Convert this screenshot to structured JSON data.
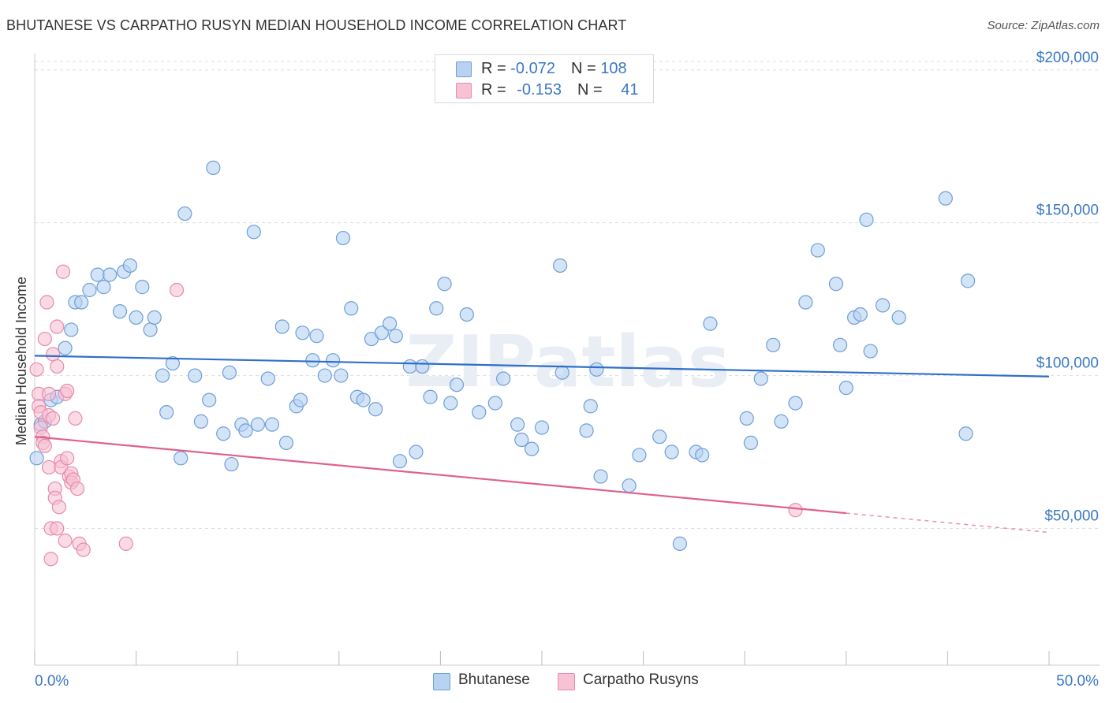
{
  "title": "BHUTANESE VS CARPATHO RUSYN MEDIAN HOUSEHOLD INCOME CORRELATION CHART",
  "source": "Source: ZipAtlas.com",
  "watermark": "ZIPatlas",
  "legend_top": [
    {
      "r_label": "R = ",
      "r_value": "-0.072",
      "n_label": "N = ",
      "n_value": "108"
    },
    {
      "r_label": "R = ",
      "r_value": "-0.153",
      "n_label": "N = ",
      "n_value": "41"
    }
  ],
  "legend_bottom": [
    {
      "label": "Bhutanese"
    },
    {
      "label": "Carpatho Rusyns"
    }
  ],
  "colors": {
    "blue_fill": "#b8d2f2",
    "blue_stroke": "#6e9fd8",
    "blue_line": "#2f6fca",
    "pink_fill": "#f7c2d4",
    "pink_stroke": "#e88bab",
    "pink_line": "#e0608e",
    "axis_text": "#3b78c4",
    "grid": "#dddddd"
  },
  "chart_data": {
    "type": "scatter",
    "title": "BHUTANESE VS CARPATHO RUSYN MEDIAN HOUSEHOLD INCOME CORRELATION CHART",
    "xlabel": "",
    "ylabel": "Median Household Income",
    "xlim": [
      0,
      50
    ],
    "ylim": [
      5000,
      210000
    ],
    "x_tick_labels": [
      "0.0%",
      "50.0%"
    ],
    "y_ticks": [
      50000,
      100000,
      150000,
      200000
    ],
    "y_tick_labels": [
      "$50,000",
      "$100,000",
      "$150,000",
      "$200,000"
    ],
    "series": [
      {
        "name": "Bhutanese",
        "r": -0.072,
        "n": 108,
        "trend": {
          "x0": 0,
          "y0": 106500,
          "x1": 50,
          "y1": 99700
        },
        "points": [
          [
            0.1,
            73000
          ],
          [
            0.3,
            84000
          ],
          [
            0.5,
            85000
          ],
          [
            0.8,
            92000
          ],
          [
            1.1,
            93000
          ],
          [
            1.5,
            109000
          ],
          [
            1.8,
            115000
          ],
          [
            2.0,
            124000
          ],
          [
            2.3,
            124000
          ],
          [
            2.7,
            128000
          ],
          [
            3.1,
            133000
          ],
          [
            3.4,
            129000
          ],
          [
            3.7,
            133000
          ],
          [
            4.2,
            121000
          ],
          [
            4.4,
            134000
          ],
          [
            4.7,
            136000
          ],
          [
            5.0,
            119000
          ],
          [
            5.3,
            129000
          ],
          [
            5.7,
            115000
          ],
          [
            5.9,
            119000
          ],
          [
            6.3,
            100000
          ],
          [
            6.5,
            88000
          ],
          [
            6.8,
            104000
          ],
          [
            7.2,
            73000
          ],
          [
            7.4,
            153000
          ],
          [
            7.9,
            100000
          ],
          [
            8.2,
            85000
          ],
          [
            8.6,
            92000
          ],
          [
            8.8,
            168000
          ],
          [
            9.3,
            81000
          ],
          [
            9.6,
            101000
          ],
          [
            9.7,
            71000
          ],
          [
            10.2,
            84000
          ],
          [
            10.4,
            82000
          ],
          [
            10.8,
            147000
          ],
          [
            11.0,
            84000
          ],
          [
            11.5,
            99000
          ],
          [
            11.7,
            84000
          ],
          [
            12.2,
            116000
          ],
          [
            12.4,
            78000
          ],
          [
            12.9,
            90000
          ],
          [
            13.1,
            92000
          ],
          [
            13.2,
            114000
          ],
          [
            13.7,
            105000
          ],
          [
            13.9,
            113000
          ],
          [
            14.3,
            100000
          ],
          [
            14.7,
            105000
          ],
          [
            15.1,
            100000
          ],
          [
            15.2,
            145000
          ],
          [
            15.6,
            122000
          ],
          [
            15.9,
            93000
          ],
          [
            16.2,
            92000
          ],
          [
            16.6,
            112000
          ],
          [
            16.8,
            89000
          ],
          [
            17.1,
            114000
          ],
          [
            17.5,
            117000
          ],
          [
            17.8,
            113000
          ],
          [
            18.0,
            72000
          ],
          [
            18.5,
            103000
          ],
          [
            18.8,
            75000
          ],
          [
            19.1,
            103000
          ],
          [
            19.5,
            93000
          ],
          [
            19.8,
            122000
          ],
          [
            20.2,
            130000
          ],
          [
            20.5,
            91000
          ],
          [
            20.8,
            97000
          ],
          [
            21.3,
            120000
          ],
          [
            21.9,
            88000
          ],
          [
            22.7,
            91000
          ],
          [
            23.1,
            99000
          ],
          [
            23.8,
            84000
          ],
          [
            24.0,
            79000
          ],
          [
            24.5,
            76000
          ],
          [
            25.0,
            83000
          ],
          [
            25.9,
            136000
          ],
          [
            26.0,
            101000
          ],
          [
            27.2,
            82000
          ],
          [
            27.4,
            90000
          ],
          [
            27.7,
            102000
          ],
          [
            27.9,
            67000
          ],
          [
            29.3,
            64000
          ],
          [
            29.8,
            74000
          ],
          [
            30.8,
            80000
          ],
          [
            31.4,
            75000
          ],
          [
            31.8,
            45000
          ],
          [
            32.6,
            75000
          ],
          [
            32.9,
            74000
          ],
          [
            33.3,
            117000
          ],
          [
            35.1,
            86000
          ],
          [
            35.3,
            78000
          ],
          [
            35.8,
            99000
          ],
          [
            36.4,
            110000
          ],
          [
            36.8,
            85000
          ],
          [
            37.5,
            91000
          ],
          [
            38.0,
            124000
          ],
          [
            38.6,
            141000
          ],
          [
            39.5,
            130000
          ],
          [
            39.7,
            110000
          ],
          [
            40.0,
            96000
          ],
          [
            40.4,
            119000
          ],
          [
            40.7,
            120000
          ],
          [
            41.0,
            151000
          ],
          [
            41.2,
            108000
          ],
          [
            41.8,
            123000
          ],
          [
            42.6,
            119000
          ],
          [
            44.9,
            158000
          ],
          [
            45.9,
            81000
          ],
          [
            46.0,
            131000
          ]
        ]
      },
      {
        "name": "Carpatho Rusyns",
        "r": -0.153,
        "n": 41,
        "trend": {
          "x0": 0,
          "y0": 80000,
          "x1": 40,
          "y1": 55000,
          "dashed_to": {
            "x": 50,
            "y": 48700
          }
        },
        "points": [
          [
            0.1,
            102000
          ],
          [
            0.2,
            94000
          ],
          [
            0.2,
            90000
          ],
          [
            0.3,
            88000
          ],
          [
            0.3,
            83000
          ],
          [
            0.4,
            80000
          ],
          [
            0.4,
            78000
          ],
          [
            0.5,
            112000
          ],
          [
            0.5,
            77000
          ],
          [
            0.6,
            124000
          ],
          [
            0.7,
            94000
          ],
          [
            0.7,
            87000
          ],
          [
            0.7,
            70000
          ],
          [
            0.8,
            50000
          ],
          [
            0.8,
            40000
          ],
          [
            0.9,
            107000
          ],
          [
            0.9,
            86000
          ],
          [
            1.0,
            63000
          ],
          [
            1.0,
            60000
          ],
          [
            1.1,
            116000
          ],
          [
            1.1,
            103000
          ],
          [
            1.1,
            50000
          ],
          [
            1.2,
            57000
          ],
          [
            1.3,
            72000
          ],
          [
            1.3,
            70000
          ],
          [
            1.4,
            134000
          ],
          [
            1.5,
            46000
          ],
          [
            1.5,
            94000
          ],
          [
            1.6,
            73000
          ],
          [
            1.6,
            95000
          ],
          [
            1.7,
            67000
          ],
          [
            1.8,
            68000
          ],
          [
            1.8,
            65000
          ],
          [
            1.9,
            66000
          ],
          [
            2.0,
            86000
          ],
          [
            2.1,
            63000
          ],
          [
            2.2,
            45000
          ],
          [
            2.4,
            43000
          ],
          [
            4.5,
            45000
          ],
          [
            7.0,
            128000
          ],
          [
            37.5,
            56000
          ]
        ]
      }
    ]
  }
}
